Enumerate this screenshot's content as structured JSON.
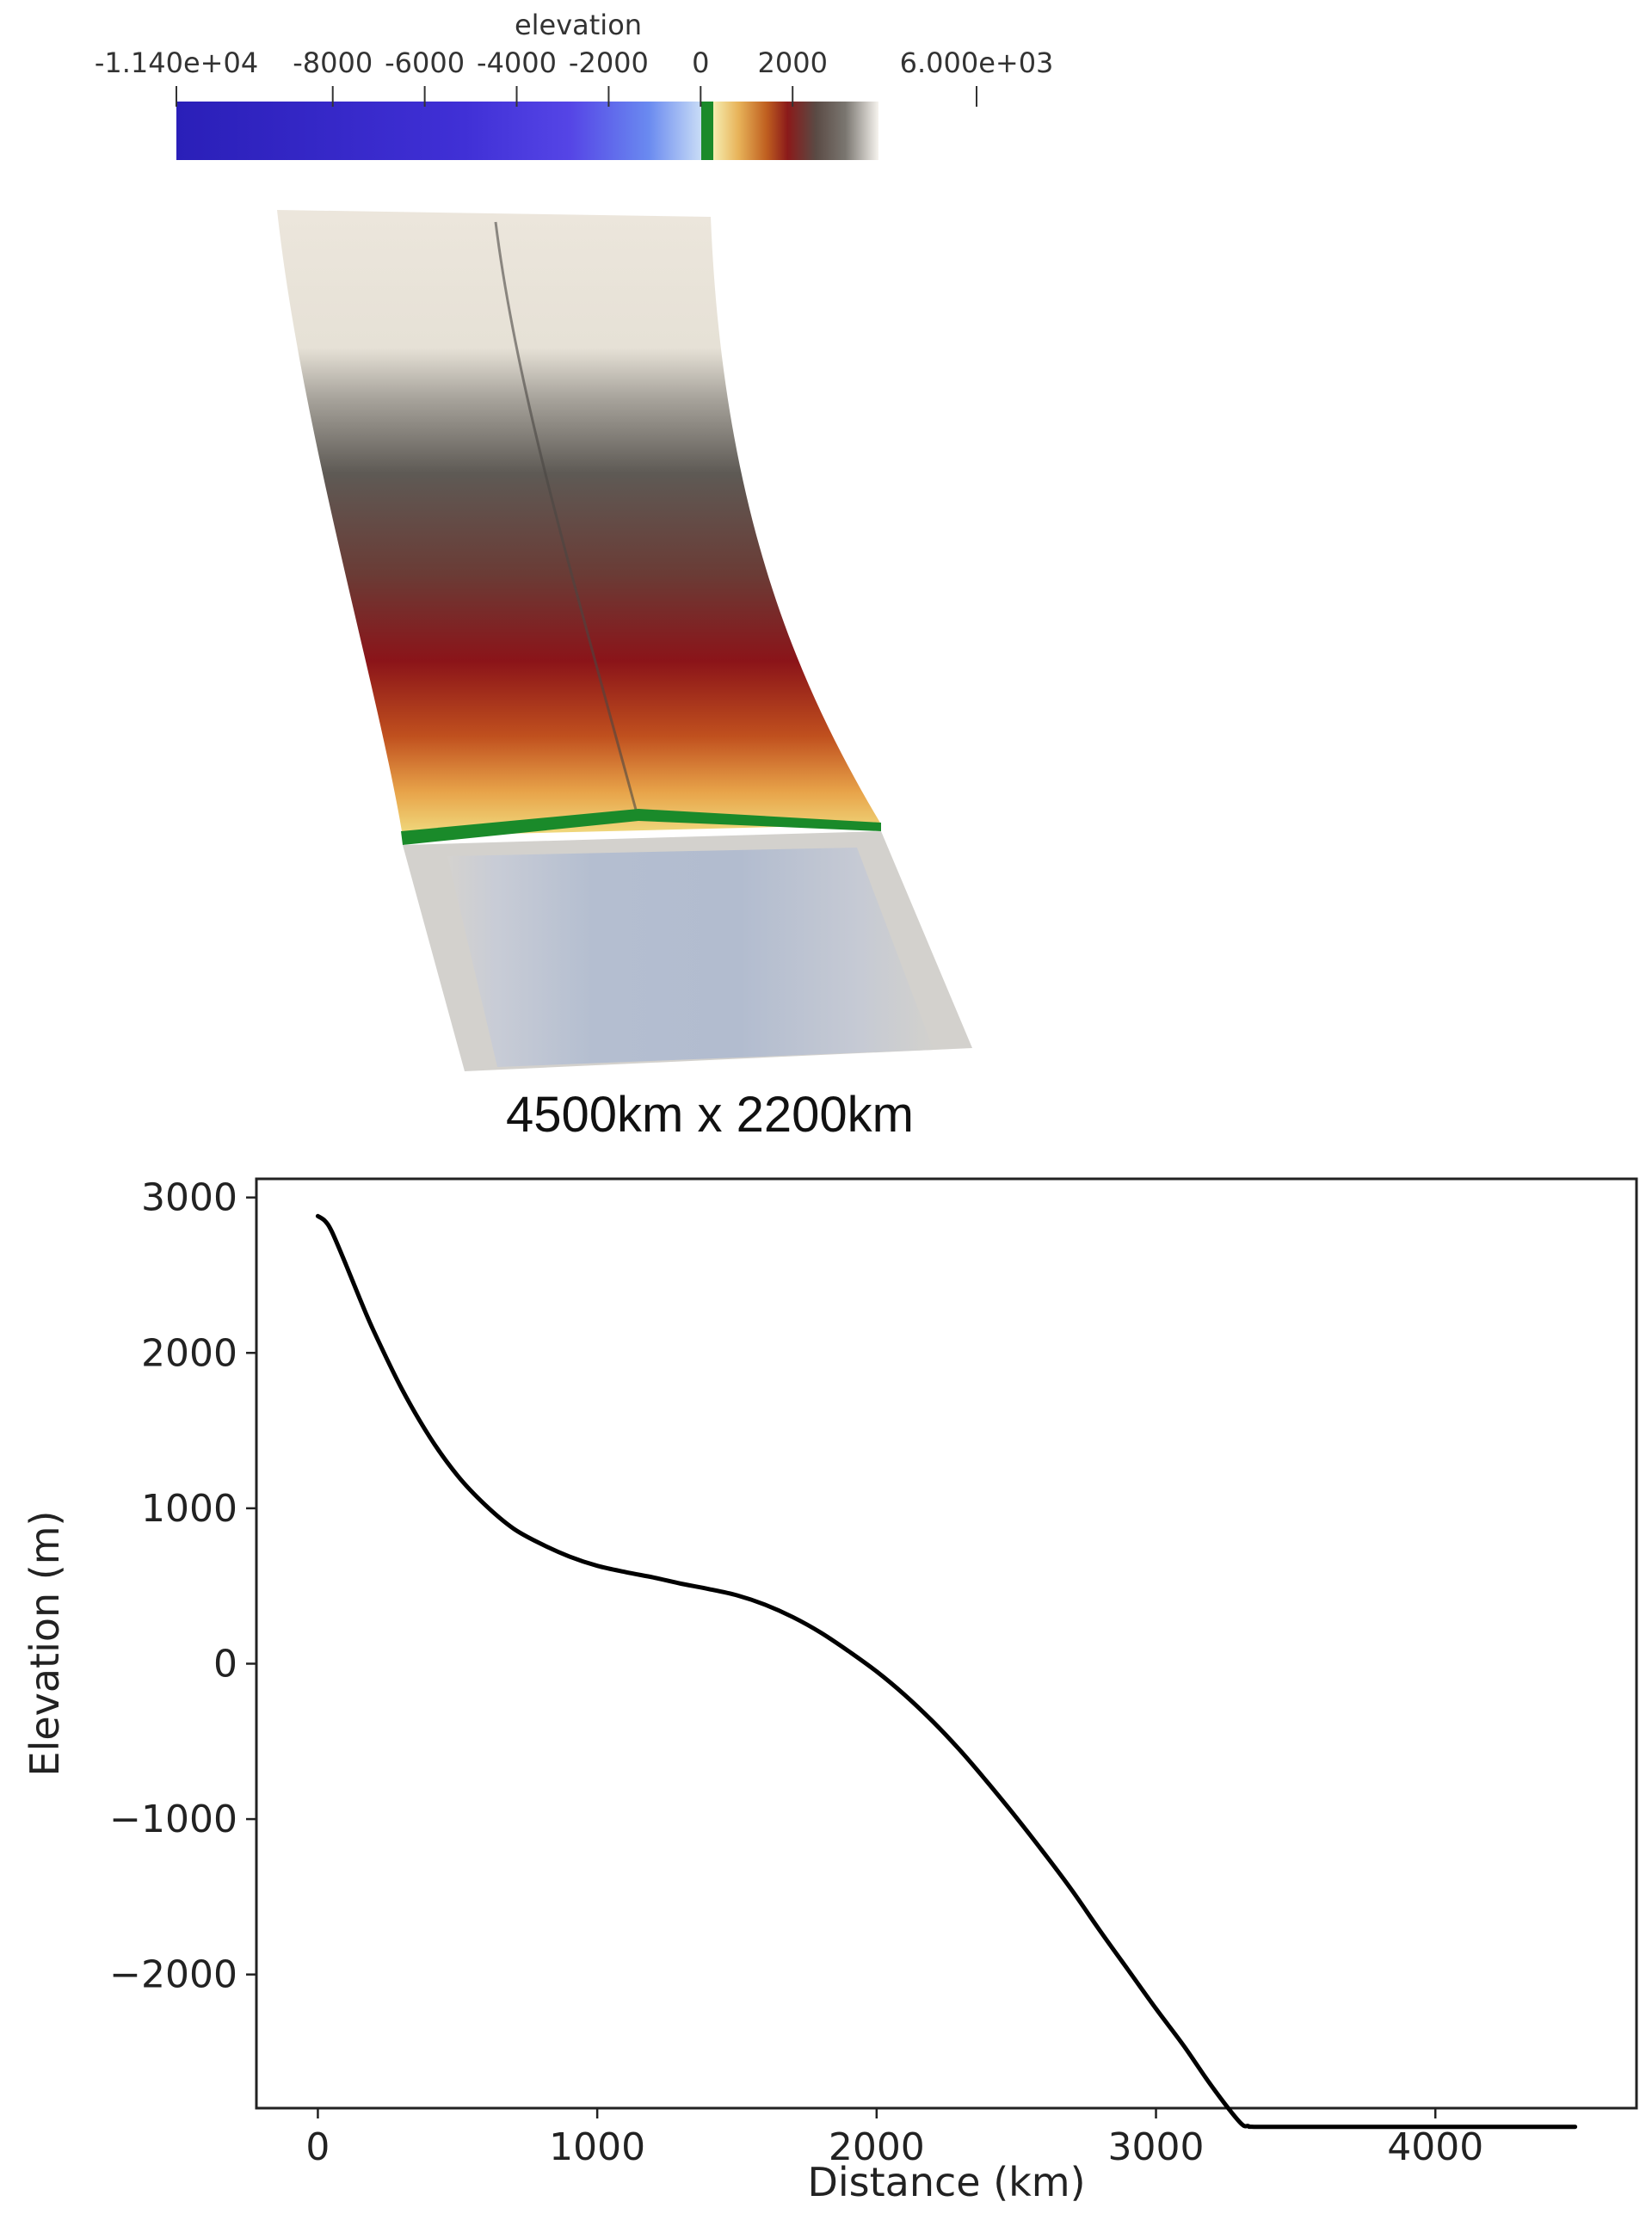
{
  "colorbar": {
    "title": "elevation",
    "ticks": [
      {
        "label": "-1.140e+04",
        "value": -11400
      },
      {
        "label": "-8000",
        "value": -8000
      },
      {
        "label": "-6000",
        "value": -6000
      },
      {
        "label": "-4000",
        "value": -4000
      },
      {
        "label": "-2000",
        "value": -2000
      },
      {
        "label": "0",
        "value": 0
      },
      {
        "label": "2000",
        "value": 2000
      },
      {
        "label": "6.000e+03",
        "value": 6000
      }
    ],
    "range": [
      -11400,
      6000
    ],
    "colors": {
      "deep": "#2a1fb8",
      "mid_negative": "#5545e6",
      "shallow": "#a8c8f0",
      "sea_level": "#1a8a2a",
      "low_land": "#f0d070",
      "mid_land": "#d08a30",
      "high_land": "#8b1a1a",
      "peak": "#5a5550",
      "top": "#ece6dc"
    }
  },
  "terrain": {
    "caption": "4500km x 2200km"
  },
  "chart_data": {
    "type": "line",
    "title": "",
    "xlabel": "Distance (km)",
    "ylabel": "Elevation (m)",
    "xlim": [
      -220,
      4720
    ],
    "ylim": [
      -2860,
      3120
    ],
    "xticks": [
      0,
      1000,
      2000,
      3000,
      4000
    ],
    "yticks": [
      -2000,
      -1000,
      0,
      1000,
      2000,
      3000
    ],
    "xtick_labels": [
      "0",
      "1000",
      "2000",
      "3000",
      "4000"
    ],
    "ytick_labels": [
      "−2000",
      "−1000",
      "0",
      "1000",
      "2000",
      "3000"
    ],
    "grid": false,
    "series": [
      {
        "color": "#000000",
        "x": [
          0,
          25,
          50,
          100,
          150,
          200,
          300,
          400,
          500,
          600,
          700,
          800,
          900,
          1000,
          1100,
          1200,
          1300,
          1400,
          1500,
          1600,
          1700,
          1800,
          1900,
          2000,
          2100,
          2200,
          2300,
          2400,
          2500,
          2600,
          2700,
          2800,
          2900,
          3000,
          3100,
          3200,
          3300,
          3330,
          3350,
          3500,
          4000,
          4500
        ],
        "y": [
          2880,
          2850,
          2780,
          2570,
          2350,
          2140,
          1770,
          1460,
          1210,
          1020,
          870,
          770,
          690,
          630,
          590,
          555,
          515,
          480,
          440,
          380,
          300,
          200,
          80,
          -50,
          -200,
          -370,
          -560,
          -770,
          -990,
          -1220,
          -1460,
          -1720,
          -1970,
          -2220,
          -2460,
          -2720,
          -2950,
          -2975,
          -2980,
          -2980,
          -2980,
          -2980
        ]
      }
    ]
  }
}
